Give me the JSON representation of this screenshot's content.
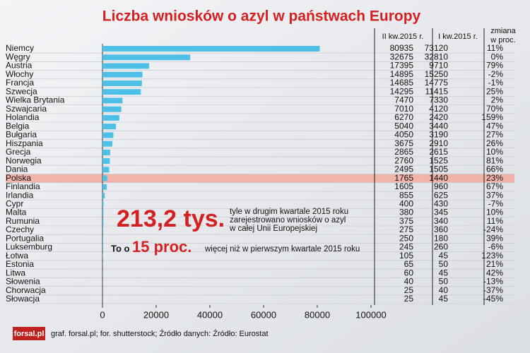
{
  "chart_data": {
    "type": "bar",
    "title": "Liczba wniosków o azyl w państwach Europy",
    "categories": [
      "Niemcy",
      "Węgry",
      "Austria",
      "Włochy",
      "Francja",
      "Szwecja",
      "Wielka Brytania",
      "Szwajcaria",
      "Holandia",
      "Belgia",
      "Bułgaria",
      "Hiszpania",
      "Grecja",
      "Norwegia",
      "Dania",
      "Polska",
      "Finlandia",
      "Irlandia",
      "Cypr",
      "Malta",
      "Rumunia",
      "Czechy",
      "Portugalia",
      "Luksemburg",
      "Łotwa",
      "Estonia",
      "Litwa",
      "Słowenia",
      "Chorwacja",
      "Słowacja"
    ],
    "values": [
      80935,
      32675,
      17395,
      14895,
      14685,
      14295,
      7470,
      7010,
      6270,
      5040,
      4050,
      3675,
      2865,
      2760,
      2495,
      1765,
      1605,
      855,
      400,
      380,
      375,
      275,
      250,
      245,
      105,
      65,
      60,
      40,
      25,
      25
    ],
    "color": "#4ec0e8",
    "q1_values": [
      73120,
      32810,
      9710,
      15250,
      14775,
      11415,
      7330,
      4120,
      2420,
      3440,
      3190,
      2910,
      2615,
      1525,
      1505,
      1440,
      960,
      625,
      430,
      345,
      340,
      360,
      180,
      260,
      45,
      50,
      45,
      50,
      40,
      45
    ],
    "change_labels": [
      "11%",
      "0%",
      "79%",
      "-2%",
      "-1%",
      "25%",
      "2%",
      "70%",
      "159%",
      "47%",
      "27%",
      "26%",
      "10%",
      "81%",
      "66%",
      "23%",
      "67%",
      "37%",
      "-7%",
      "10%",
      "11%",
      "-24%",
      "39%",
      "-6%",
      "123%",
      "21%",
      "42%",
      "-13%",
      "-37%",
      "-45%"
    ],
    "column_headers": [
      "II kw.2015 r.",
      "I kw.2015 r."
    ],
    "change_header": [
      "zmiana",
      "w proc."
    ],
    "highlight": 15,
    "highlight_color": "#f2aa9c",
    "xlim": [
      0,
      100000
    ],
    "xticks": [
      0,
      20000,
      40000,
      60000,
      80000,
      100000
    ],
    "grid": true,
    "annotations": {
      "total": "213,2 tys.",
      "total_text": [
        "tyle w drugim kwartale 2015 roku",
        "zarejestrowano wniosków o azyl",
        "w całej Unii Europejskiej"
      ],
      "growth_prefix": "To o",
      "growth": "15 proc.",
      "growth_text": "więcej niż w pierwszym kwartale 2015 roku"
    },
    "logo": "forsal.pl",
    "source": "graf. forsal.pl; for. shutterstock;  Źródło danych:  Źródło: Eurostat"
  }
}
